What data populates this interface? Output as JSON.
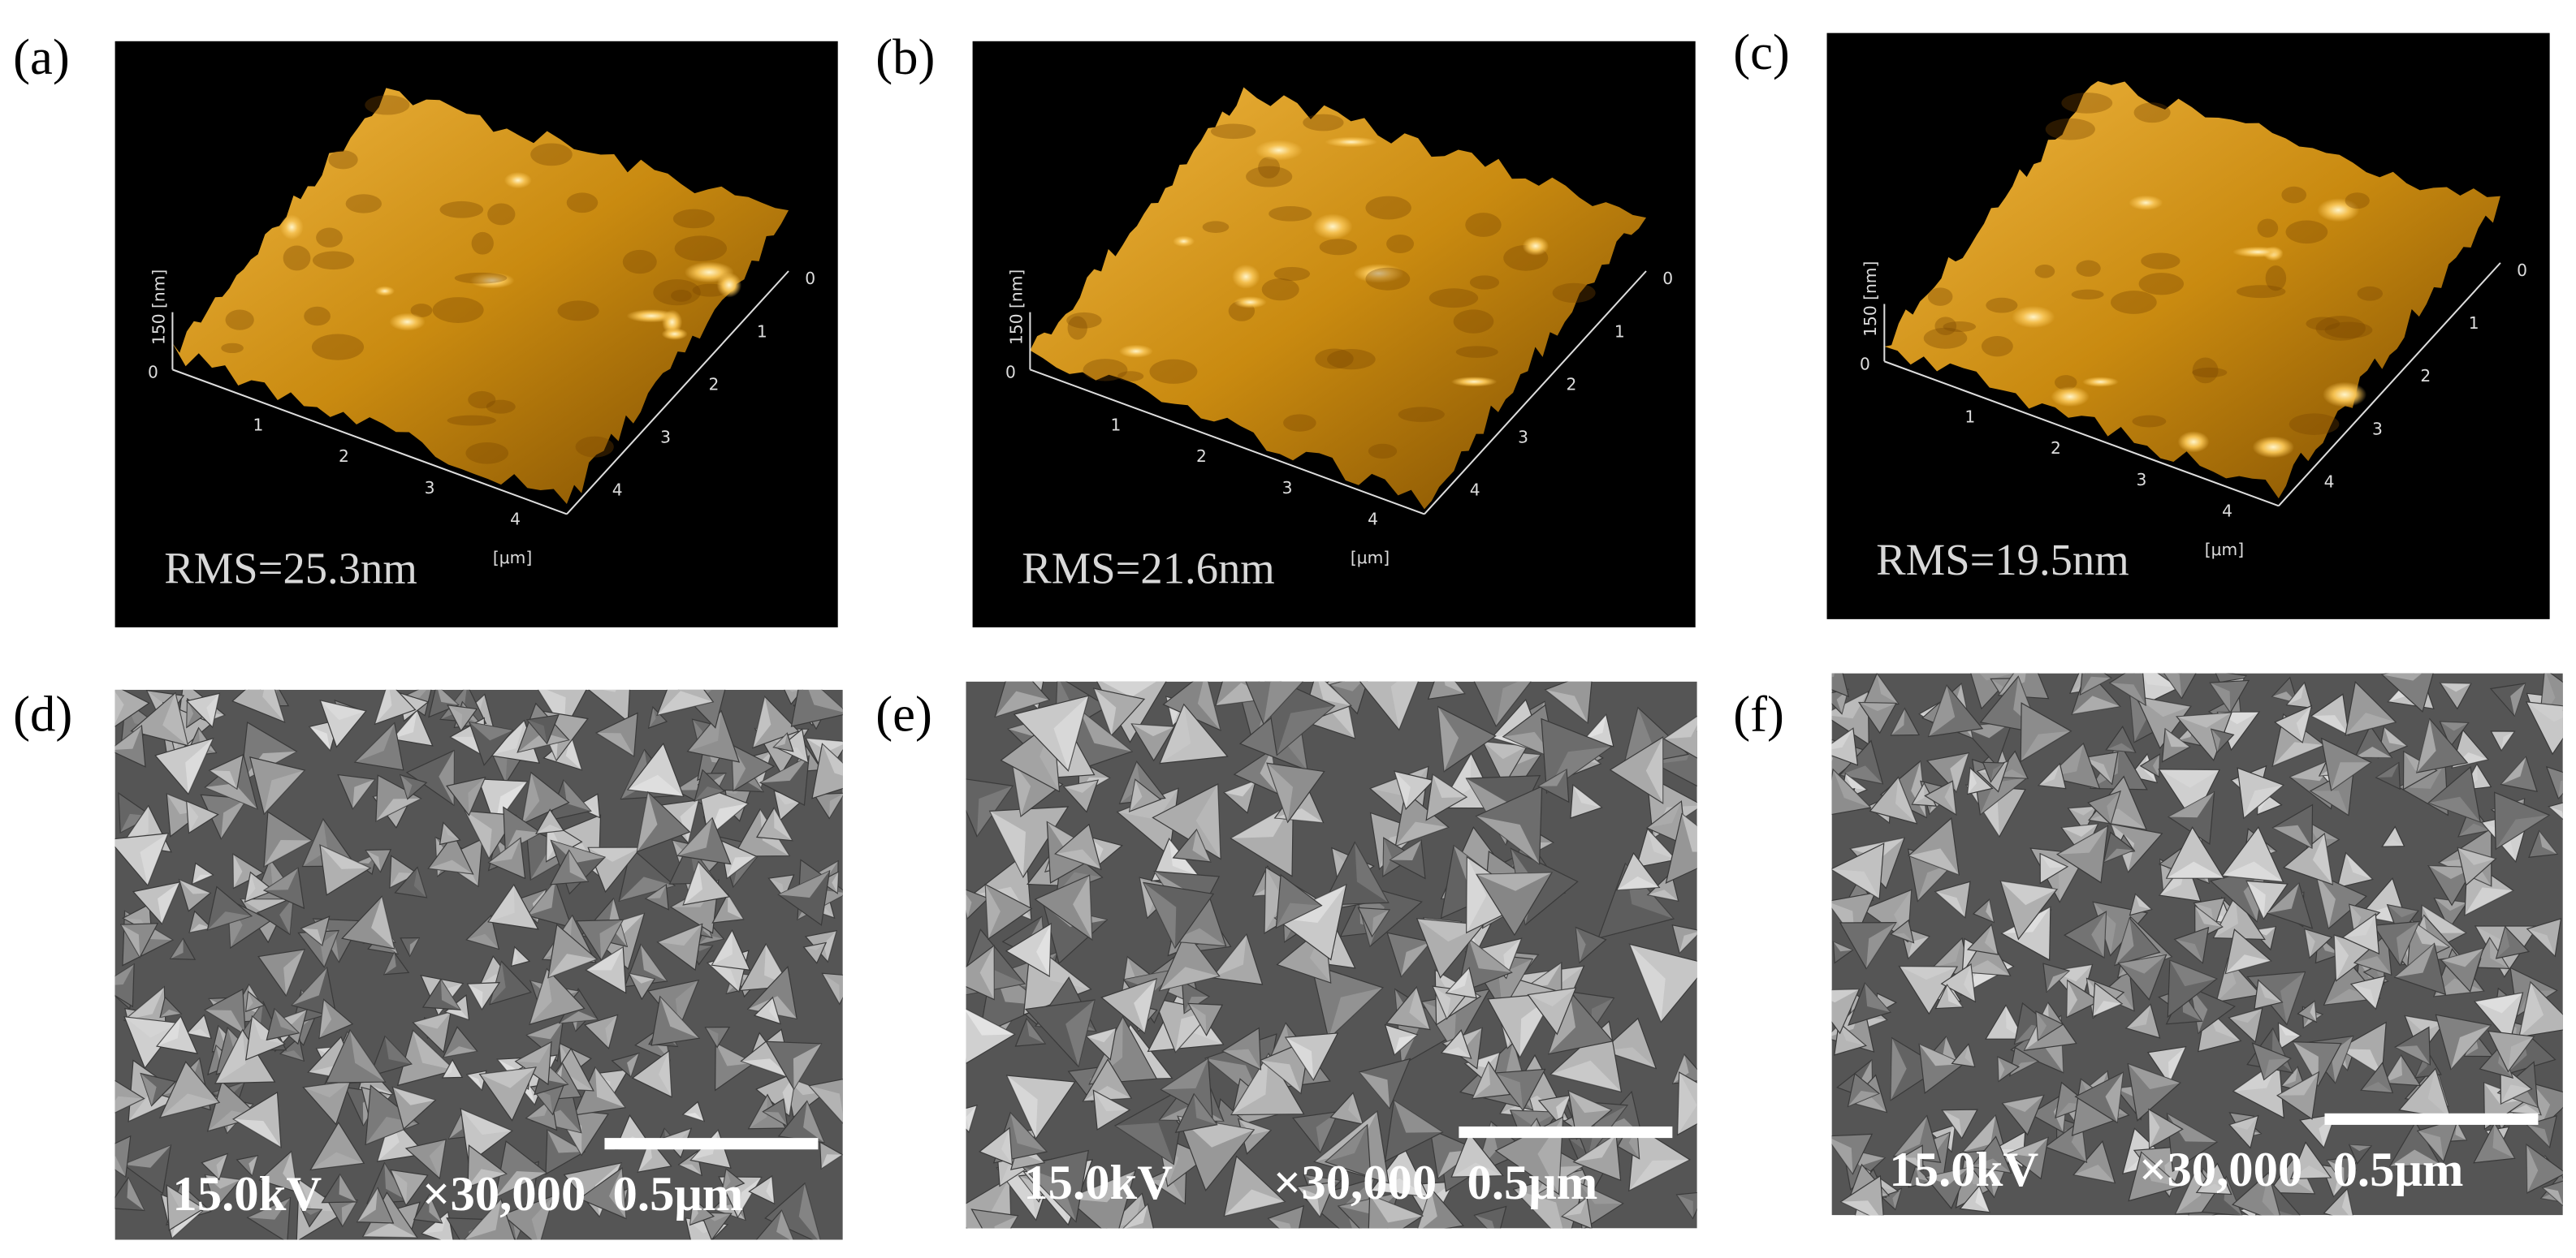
{
  "afm_panels": [
    {
      "label": "(a)",
      "rms": "RMS=25.3nm",
      "z_label": "150 [nm]",
      "z_zero": "0",
      "x_ticks": [
        "1",
        "2",
        "3",
        "4"
      ],
      "y_ticks": [
        "0",
        "1",
        "2",
        "3",
        "4"
      ],
      "unit": "[μm]"
    },
    {
      "label": "(b)",
      "rms": "RMS=21.6nm",
      "z_label": "150 [nm]",
      "z_zero": "0",
      "x_ticks": [
        "1",
        "2",
        "3",
        "4"
      ],
      "y_ticks": [
        "0",
        "1",
        "2",
        "3",
        "4"
      ],
      "unit": "[μm]"
    },
    {
      "label": "(c)",
      "rms": "RMS=19.5nm",
      "z_label": "150 [nm]",
      "z_zero": "0",
      "x_ticks": [
        "1",
        "2",
        "3",
        "4"
      ],
      "y_ticks": [
        "0",
        "1",
        "2",
        "3",
        "4"
      ],
      "unit": "[μm]"
    }
  ],
  "sem_panels": [
    {
      "label": "(d)",
      "voltage": "15.0kV",
      "magnification": "×30,000",
      "scale_bar": "0.5μm"
    },
    {
      "label": "(e)",
      "voltage": "15.0kV",
      "magnification": "×30,000",
      "scale_bar": "0.5μm"
    },
    {
      "label": "(f)",
      "voltage": "15.0kV",
      "magnification": "×30,000",
      "scale_bar": "0.5μm"
    }
  ]
}
